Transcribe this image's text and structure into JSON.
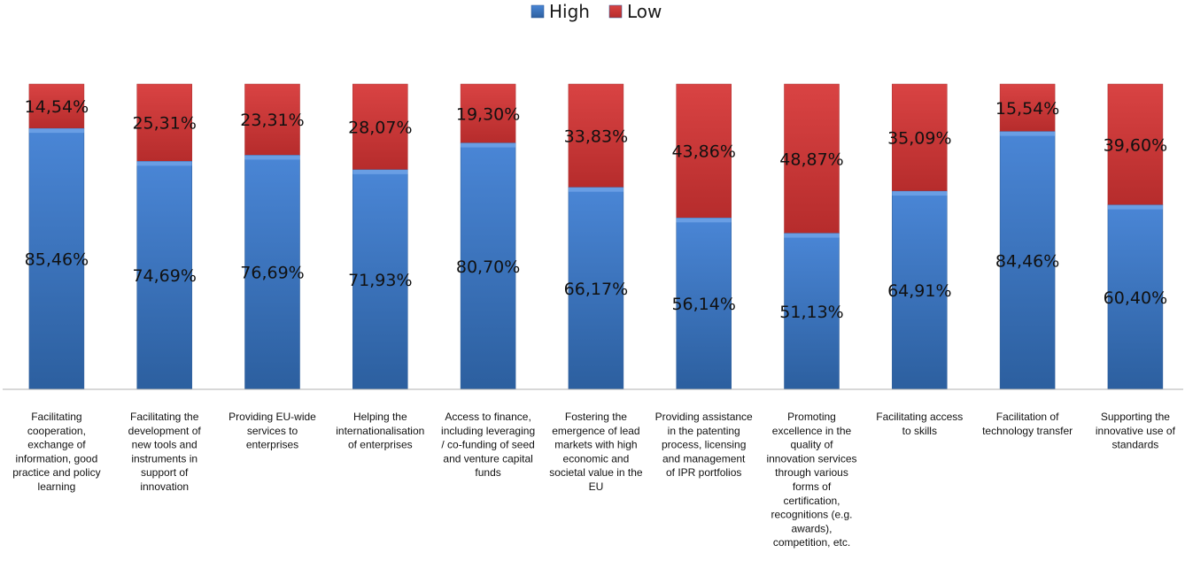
{
  "chart_data": {
    "type": "bar",
    "stacked": true,
    "percent_stacked": true,
    "legend_position": "top",
    "categories": [
      "Facilitating cooperation, exchange of information, good practice and policy learning",
      "Facilitating the development of new tools and instruments in support of innovation",
      "Providing EU-wide services to enterprises",
      "Helping the internationalisation of enterprises",
      "Access to finance, including leveraging / co-funding of seed and venture capital funds",
      "Fostering the emergence of lead markets with high economic and societal value in the EU",
      "Providing assistance in the patenting process, licensing and management of IPR portfolios",
      "Promoting excellence in the quality of innovation services through various forms of certification, recognitions (e.g. awards), competition, etc.",
      "Facilitating access to skills",
      "Facilitation of technology transfer",
      "Supporting the innovative use of standards"
    ],
    "category_lines": [
      [
        "Facilitating",
        "cooperation,",
        "exchange of",
        "information, good",
        "practice and policy",
        "learning"
      ],
      [
        "Facilitating the",
        "development of",
        "new tools and",
        "instruments in",
        "support of",
        "innovation"
      ],
      [
        "Providing EU-wide",
        "services to",
        "enterprises"
      ],
      [
        "Helping the",
        "internationalisation",
        "of enterprises"
      ],
      [
        "Access to finance,",
        "including leveraging",
        "/ co-funding of seed",
        "and venture capital",
        "funds"
      ],
      [
        "Fostering the",
        "emergence of lead",
        "markets with high",
        "economic and",
        "societal value in the",
        "EU"
      ],
      [
        "Providing assistance",
        "in the patenting",
        "process, licensing",
        "and management",
        "of IPR portfolios"
      ],
      [
        "Promoting",
        "excellence in the",
        "quality of",
        "innovation services",
        "through various",
        "forms of",
        "certification,",
        "recognitions (e.g.",
        "awards),",
        "competition, etc."
      ],
      [
        "Facilitating access",
        "to skills"
      ],
      [
        "Facilitation of",
        "technology transfer"
      ],
      [
        "Supporting the",
        "innovative use of",
        "standards"
      ]
    ],
    "series": [
      {
        "name": "High",
        "color": "#3a75c4",
        "values": [
          85.46,
          74.69,
          76.69,
          71.93,
          80.7,
          66.17,
          56.14,
          51.13,
          64.91,
          84.46,
          60.4
        ],
        "labels": [
          "85,46%",
          "74,69%",
          "76,69%",
          "71,93%",
          "80,70%",
          "66,17%",
          "56,14%",
          "51,13%",
          "64,91%",
          "84,46%",
          "60,40%"
        ]
      },
      {
        "name": "Low",
        "color": "#cf3b3b",
        "values": [
          14.54,
          25.31,
          23.31,
          28.07,
          19.3,
          33.83,
          43.86,
          48.87,
          35.09,
          15.54,
          39.6
        ],
        "labels": [
          "14,54%",
          "25,31%",
          "23,31%",
          "28,07%",
          "19,30%",
          "33,83%",
          "43,86%",
          "48,87%",
          "35,09%",
          "15,54%",
          "39,60%"
        ]
      }
    ],
    "ylim": [
      0,
      100
    ],
    "grid": false,
    "axis_color": "#b0b0b0"
  }
}
